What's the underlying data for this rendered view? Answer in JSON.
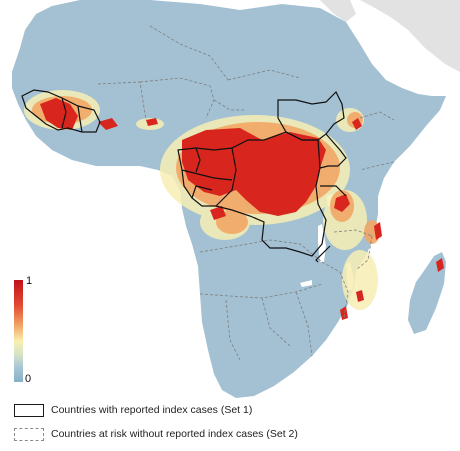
{
  "colorbar": {
    "max_label": "1",
    "min_label": "0",
    "colors": {
      "high": "#c2111a",
      "mid": "#f8efaf",
      "low": "#86b1c9"
    }
  },
  "legend": {
    "items": [
      {
        "label": "Countries with reported index cases (Set 1)",
        "style": "solid"
      },
      {
        "label": "Countries at risk without reported index cases (Set 2)",
        "style": "dashed"
      }
    ]
  },
  "map": {
    "land_color": "#a3c1d3",
    "ocean_color": "#ffffff",
    "other_land_color": "#e2e2e2",
    "risk_high_color": "#d8261e",
    "risk_mid_color": "#f2a765",
    "risk_low_color": "#f7efb4"
  }
}
